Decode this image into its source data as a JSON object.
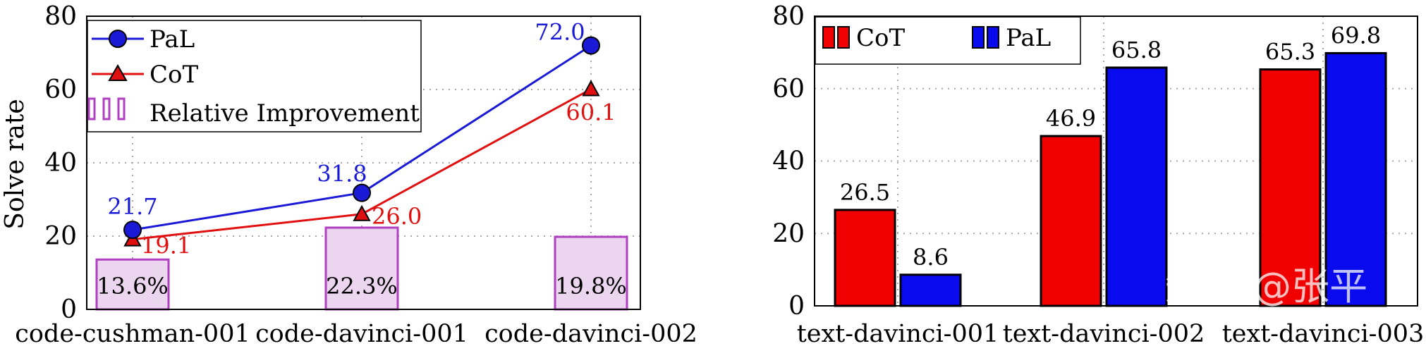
{
  "colors": {
    "pal": "#1a1ad6",
    "cot": "#e01010",
    "improvement_fill": "#ecd5ef",
    "improvement_stroke": "#b13fc2",
    "grid": "#a8a8a8",
    "bar_pal": "#0a0aee",
    "bar_cot": "#f00000"
  },
  "chart_data": [
    {
      "type": "line",
      "ylabel": "Solve rate",
      "ylim": [
        0,
        80
      ],
      "yticks": [
        "0",
        "20",
        "40",
        "60",
        "80"
      ],
      "categories": [
        "code-cushman-001",
        "code-davinci-001",
        "code-davinci-002"
      ],
      "series": [
        {
          "name": "PaL",
          "values": [
            21.7,
            31.8,
            72.0
          ],
          "labels": [
            "21.7",
            "31.8",
            "72.0"
          ]
        },
        {
          "name": "CoT",
          "values": [
            19.1,
            26.0,
            60.1
          ],
          "labels": [
            "19.1",
            "26.0",
            "60.1"
          ]
        }
      ],
      "improvement": {
        "name": "Relative Improvement",
        "values": [
          13.6,
          22.3,
          19.8
        ],
        "labels": [
          "13.6%",
          "22.3%",
          "19.8%"
        ]
      },
      "legend_position": "top-left",
      "grid": true
    },
    {
      "type": "bar",
      "ylim": [
        0,
        80
      ],
      "yticks": [
        "0",
        "20",
        "40",
        "60",
        "80"
      ],
      "categories": [
        "text-davinci-001",
        "text-davinci-002",
        "text-davinci-003"
      ],
      "series": [
        {
          "name": "CoT",
          "values": [
            26.5,
            46.9,
            65.3
          ],
          "labels": [
            "26.5",
            "46.9",
            "65.3"
          ]
        },
        {
          "name": "PaL",
          "values": [
            8.6,
            65.8,
            69.8
          ],
          "labels": [
            "8.6",
            "65.8",
            "69.8"
          ]
        }
      ],
      "legend_position": "top-left",
      "grid": true
    }
  ],
  "watermark": "知乎 @张平"
}
